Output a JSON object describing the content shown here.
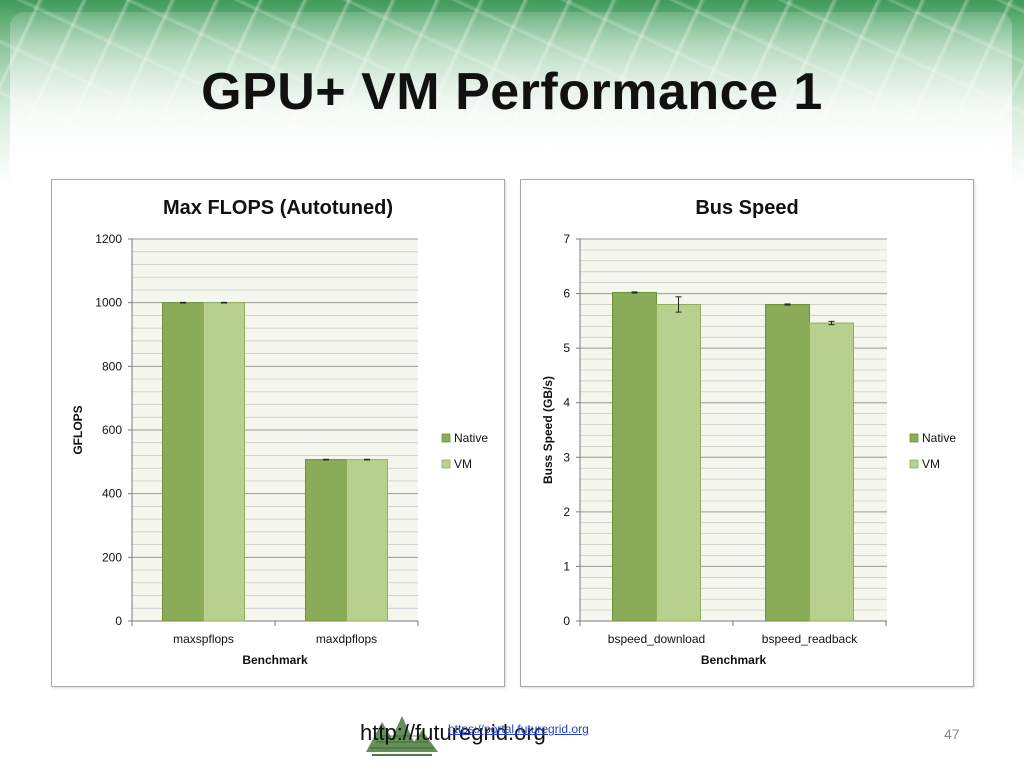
{
  "slide": {
    "title": "GPU+ VM Performance 1",
    "footer_url": "http://futuregrid.org",
    "footer_link": "https://portal.futuregrid.org",
    "logo_text": "FutureGrid",
    "slide_number": "47"
  },
  "colors": {
    "native": "#8aab57",
    "native_dark": "#6f8f3e",
    "vm": "#b8d08e",
    "vm_dark": "#8fae5c",
    "plot_bg": "#f5f6ee",
    "grid": "#9a9a9a"
  },
  "chart_data": [
    {
      "type": "bar",
      "title": "Max FLOPS (Autotuned)",
      "xlabel": "Benchmark",
      "ylabel": "GFLOPS",
      "ylim": [
        0,
        1200
      ],
      "yticks": [
        0,
        200,
        400,
        600,
        800,
        1000,
        1200
      ],
      "categories": [
        "maxspflops",
        "maxdpflops"
      ],
      "series": [
        {
          "name": "Native",
          "values": [
            1000,
            507
          ],
          "errors": [
            1,
            1
          ]
        },
        {
          "name": "VM",
          "values": [
            1000,
            507
          ],
          "errors": [
            1,
            1
          ]
        }
      ],
      "legend": "right",
      "grid": true
    },
    {
      "type": "bar",
      "title": "Bus Speed",
      "xlabel": "Benchmark",
      "ylabel": "Buss Speed (GB/s)",
      "ylim": [
        0,
        7
      ],
      "yticks": [
        0,
        1,
        2,
        3,
        4,
        5,
        6,
        7
      ],
      "categories": [
        "bspeed_download",
        "bspeed_readback"
      ],
      "series": [
        {
          "name": "Native",
          "values": [
            6.02,
            5.8
          ],
          "errors": [
            0.01,
            0.01
          ]
        },
        {
          "name": "VM",
          "values": [
            5.8,
            5.46
          ],
          "errors": [
            0.14,
            0.03
          ]
        }
      ],
      "legend": "right",
      "grid": true
    }
  ]
}
